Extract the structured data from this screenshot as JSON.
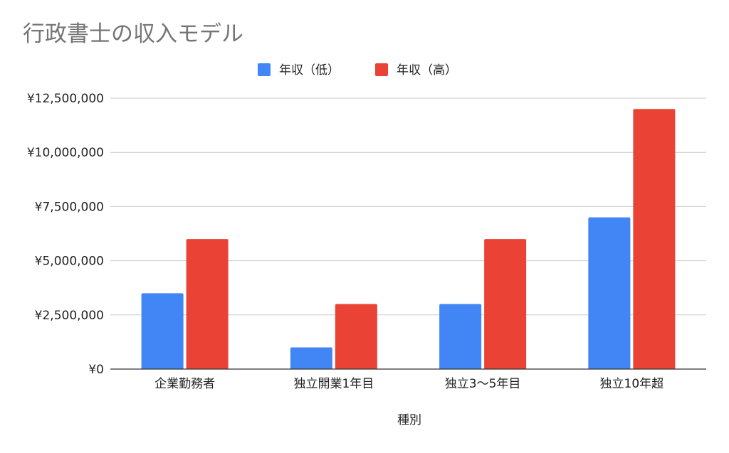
{
  "chart_data": {
    "type": "bar",
    "title": "行政書士の収入モデル",
    "xlabel": "種別",
    "ylabel": "",
    "categories": [
      "企業勤務者",
      "独立開業1年目",
      "独立3〜5年目",
      "独立10年超"
    ],
    "series": [
      {
        "name": "年収（低）",
        "color": "#4285f4",
        "values": [
          3500000,
          1000000,
          3000000,
          7000000
        ]
      },
      {
        "name": "年収（高）",
        "color": "#ea4335",
        "values": [
          6000000,
          3000000,
          6000000,
          12000000
        ]
      }
    ],
    "ylim": [
      0,
      12500000
    ],
    "yticks": [
      0,
      2500000,
      5000000,
      7500000,
      10000000,
      12500000
    ],
    "ytick_labels": [
      "¥0",
      "¥2,500,000",
      "¥5,000,000",
      "¥7,500,000",
      "¥10,000,000",
      "¥12,500,000"
    ],
    "grid": true,
    "legend_position": "top-center"
  }
}
